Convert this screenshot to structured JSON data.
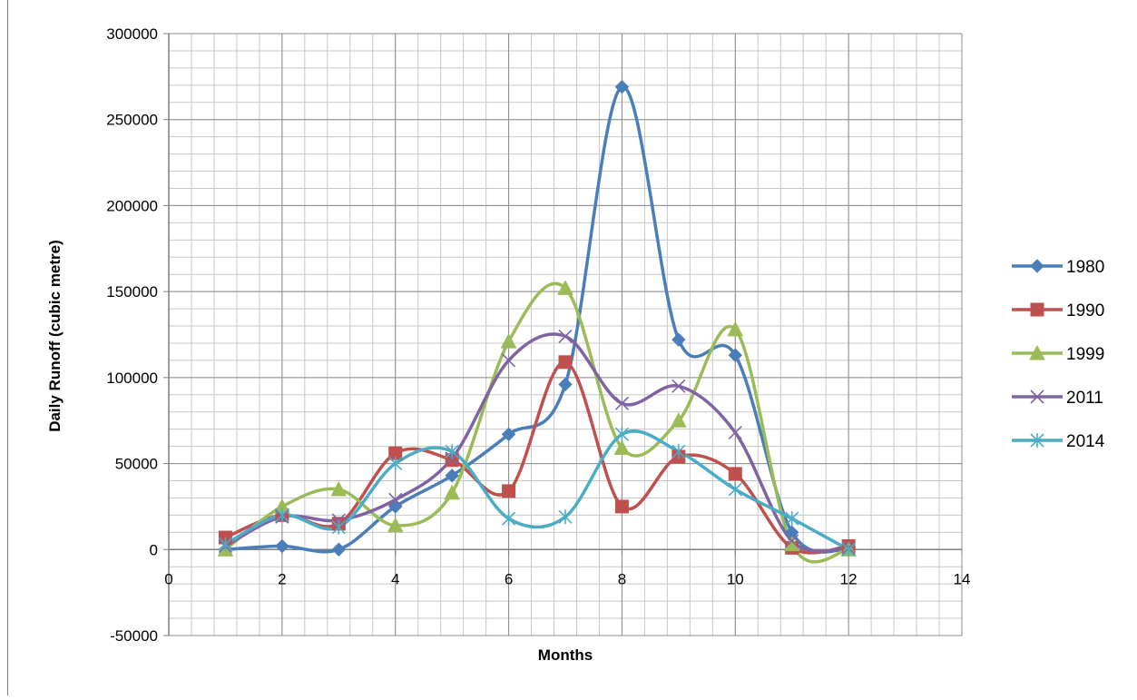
{
  "chart_data": {
    "type": "line",
    "smooth": true,
    "title": "",
    "xlabel": "Months",
    "ylabel": "Daily Runoff (cubic metre)",
    "xlim": [
      0,
      14
    ],
    "ylim": [
      -50000,
      300000
    ],
    "x_ticks": [
      0,
      2,
      4,
      6,
      8,
      10,
      12,
      14
    ],
    "y_ticks": [
      -50000,
      0,
      50000,
      100000,
      150000,
      200000,
      250000,
      300000
    ],
    "grid": true,
    "legend_position": "right",
    "x": [
      1,
      2,
      3,
      4,
      5,
      6,
      7,
      8,
      9,
      10,
      11,
      12
    ],
    "series": [
      {
        "name": "1980",
        "marker": "diamond",
        "color": "#4a7ebb",
        "values": [
          0,
          2000,
          0,
          25000,
          43000,
          67000,
          96000,
          269000,
          122000,
          113000,
          10000,
          0
        ]
      },
      {
        "name": "1990",
        "marker": "square",
        "color": "#c0504d",
        "values": [
          7000,
          20000,
          15000,
          56000,
          52000,
          34000,
          109000,
          25000,
          54000,
          44000,
          1000,
          2000
        ]
      },
      {
        "name": "1999",
        "marker": "triangle",
        "color": "#9bbb59",
        "values": [
          0,
          25000,
          35000,
          14000,
          33000,
          121000,
          152000,
          59000,
          75000,
          128000,
          3000,
          0
        ]
      },
      {
        "name": "2011",
        "marker": "x",
        "color": "#8064a2",
        "values": [
          2000,
          19000,
          17000,
          29000,
          53000,
          110000,
          124000,
          85000,
          95000,
          68000,
          5000,
          1000
        ]
      },
      {
        "name": "2014",
        "marker": "star",
        "color": "#4bacc6",
        "values": [
          3000,
          20000,
          13000,
          50000,
          57000,
          18000,
          19000,
          67000,
          57000,
          35000,
          18000,
          0
        ]
      }
    ]
  }
}
